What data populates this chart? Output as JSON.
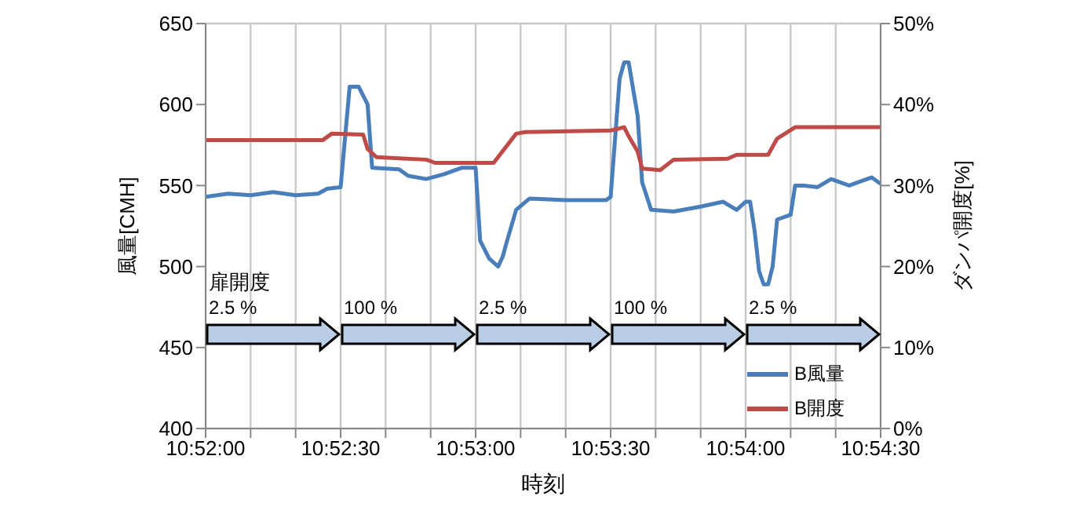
{
  "chart_data": {
    "type": "line",
    "xlabel": "時刻",
    "ylabel": "風量[CMH]",
    "y2label": "ダンパ開度[%]",
    "xlim": [
      10.866667,
      10.908333
    ],
    "xticks": [
      {
        "value": 10.866667,
        "label": "10:52:00"
      },
      {
        "value": 10.869444,
        "label": null
      },
      {
        "value": 10.872222,
        "label": null
      },
      {
        "value": 10.875,
        "label": "10:52:30"
      },
      {
        "value": 10.877778,
        "label": null
      },
      {
        "value": 10.880556,
        "label": null
      },
      {
        "value": 10.883333,
        "label": "10:53:00"
      },
      {
        "value": 10.886111,
        "label": null
      },
      {
        "value": 10.888889,
        "label": null
      },
      {
        "value": 10.891667,
        "label": "10:53:30"
      },
      {
        "value": 10.894444,
        "label": null
      },
      {
        "value": 10.897222,
        "label": null
      },
      {
        "value": 10.9,
        "label": "10:54:00"
      },
      {
        "value": 10.902778,
        "label": null
      },
      {
        "value": 10.905556,
        "label": null
      },
      {
        "value": 10.908333,
        "label": "10:54:30"
      }
    ],
    "ylim": [
      400,
      650
    ],
    "yticks": [
      400,
      450,
      500,
      550,
      600,
      650
    ],
    "y2lim": [
      0,
      50
    ],
    "y2ticks": [
      {
        "value": 0,
        "label": "0%"
      },
      {
        "value": 10,
        "label": "10%"
      },
      {
        "value": 20,
        "label": "20%"
      },
      {
        "value": 30,
        "label": "30%"
      },
      {
        "value": 40,
        "label": "40%"
      },
      {
        "value": 50,
        "label": "50%"
      }
    ],
    "grid": true,
    "legend": "bottom right",
    "marker": "none",
    "line_style": "solid",
    "series": [
      {
        "name": "B風量",
        "color": "#4a7ebb",
        "x": [
          10.866667,
          10.868056,
          10.869444,
          10.870833,
          10.872222,
          10.873611,
          10.874167,
          10.875,
          10.875556,
          10.876111,
          10.876667,
          10.876944,
          10.878611,
          10.879167,
          10.880278,
          10.881389,
          10.8825,
          10.883333,
          10.883611,
          10.884167,
          10.884722,
          10.885,
          10.885278,
          10.885833,
          10.886667,
          10.888889,
          10.891389,
          10.891667,
          10.892222,
          10.8925,
          10.892778,
          10.893333,
          10.893611,
          10.894167,
          10.895556,
          10.897222,
          10.898611,
          10.899444,
          10.9,
          10.900278,
          10.900556,
          10.900833,
          10.901111,
          10.901389,
          10.901667,
          10.901944,
          10.902778,
          10.903056,
          10.903611,
          10.904444,
          10.905278,
          10.906389,
          10.907222,
          10.907778,
          10.908333
        ],
        "values": [
          543,
          545,
          544,
          546,
          544,
          545,
          548,
          549,
          611,
          611,
          600,
          561,
          560,
          556,
          554,
          557,
          561,
          561,
          516,
          505,
          500,
          506,
          516,
          535,
          542,
          541,
          541,
          543,
          616,
          626,
          626,
          593,
          552,
          535,
          534,
          537,
          540,
          535,
          540,
          540,
          522,
          497,
          489,
          489,
          500,
          529,
          532,
          550,
          550,
          549,
          554,
          550,
          553,
          555,
          551
        ]
      },
      {
        "name": "B開度",
        "color": "#be4b48",
        "axis": "y2",
        "x": [
          10.866667,
          10.873889,
          10.874444,
          10.876389,
          10.876667,
          10.877222,
          10.880278,
          10.880833,
          10.884444,
          10.885833,
          10.886389,
          10.891667,
          10.8925,
          10.892778,
          10.893333,
          10.893611,
          10.894722,
          10.895556,
          10.898889,
          10.899444,
          10.901389,
          10.901944,
          10.903056,
          10.908333
        ],
        "values": [
          35.6,
          35.6,
          36.4,
          36.3,
          34.5,
          33.5,
          33.2,
          32.8,
          32.8,
          36.4,
          36.6,
          36.8,
          37.2,
          36.1,
          34.2,
          32.1,
          31.9,
          33.2,
          33.3,
          33.8,
          33.8,
          35.8,
          37.2,
          37.2
        ]
      }
    ],
    "annotations": [
      "扉開度",
      "2.5 %",
      "100 %",
      "2.5 %",
      "100 %",
      "2.5 %"
    ]
  }
}
